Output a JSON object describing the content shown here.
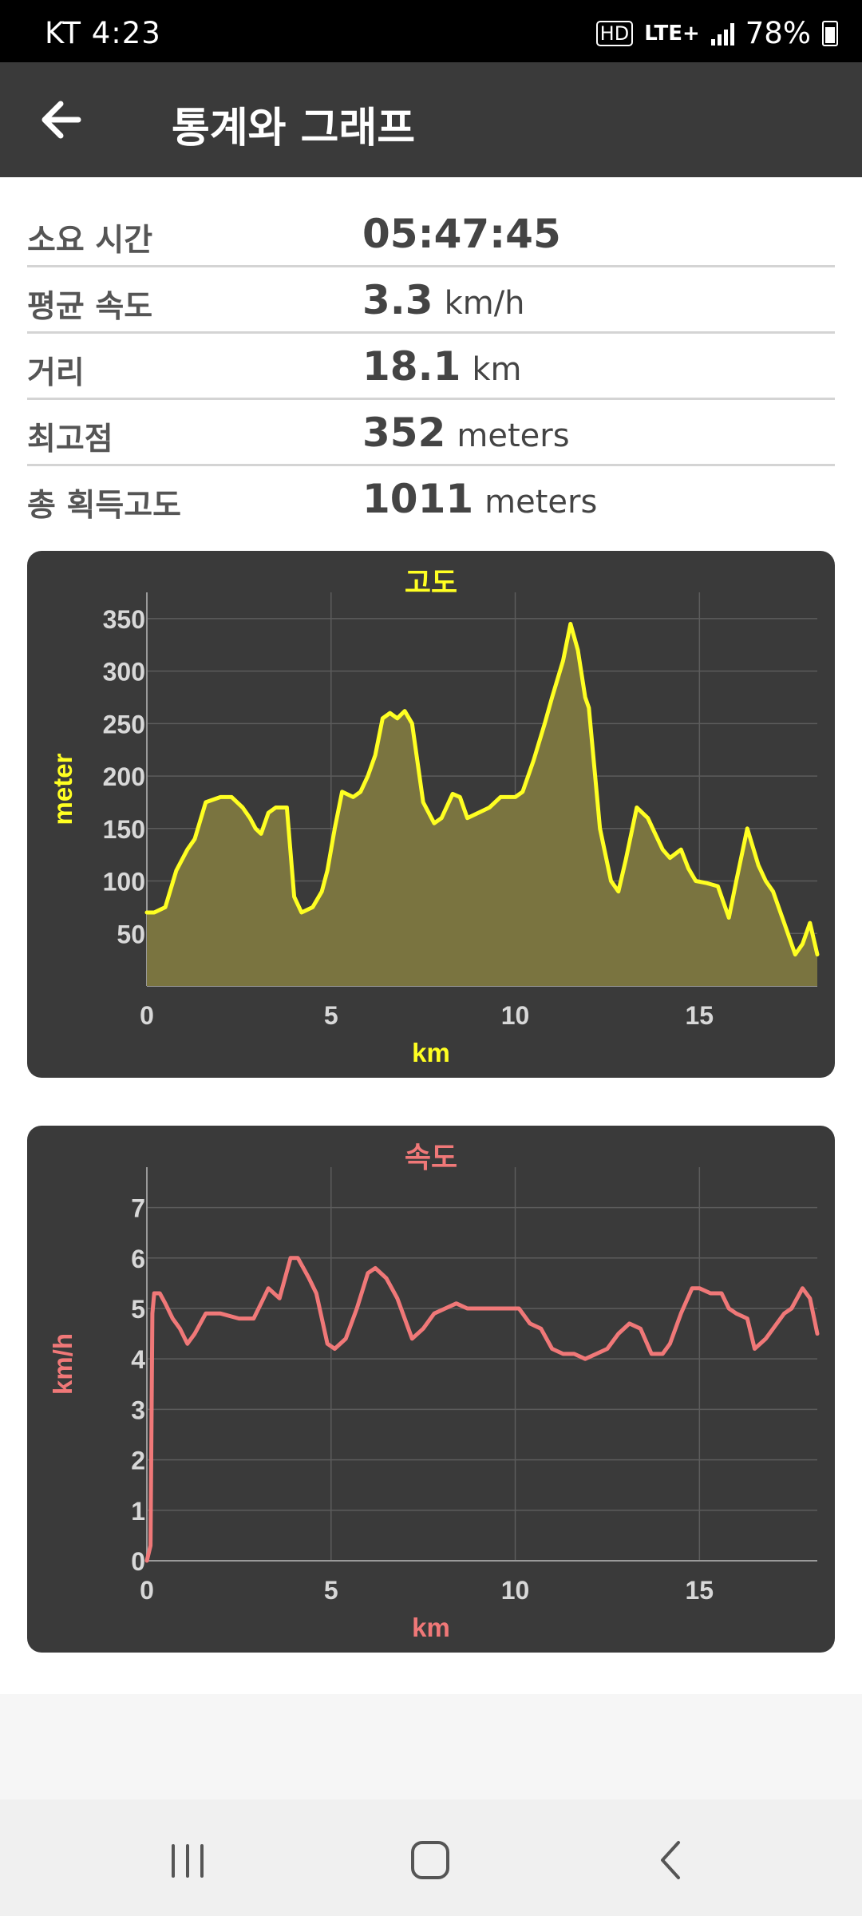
{
  "status": {
    "carrier_time": "KT 4:23",
    "hd": "HD",
    "network": "LTE+",
    "battery": "78%"
  },
  "appbar": {
    "back_icon": "arrow-left-icon",
    "title": "통계와 그래프"
  },
  "stats": [
    {
      "label": "소요 시간",
      "value": "05:47:45",
      "unit": ""
    },
    {
      "label": "평균 속도",
      "value": "3.3",
      "unit": "km/h"
    },
    {
      "label": "거리",
      "value": "18.1",
      "unit": "km"
    },
    {
      "label": "최고점",
      "value": "352",
      "unit": "meters"
    },
    {
      "label": "총 획득고도",
      "value": "1011",
      "unit": "meters"
    }
  ],
  "chart_data": [
    {
      "type": "area",
      "title": "고도",
      "xlabel": "km",
      "ylabel": "meter",
      "color": "#ffff22",
      "fill": "#7a7440",
      "xlim": [
        0,
        18.2
      ],
      "ylim": [
        0,
        375
      ],
      "xticks": [
        0,
        5,
        10,
        15
      ],
      "yticks": [
        50,
        100,
        150,
        200,
        250,
        300,
        350
      ],
      "grid": true,
      "x": [
        0,
        0.2,
        0.5,
        0.8,
        1.1,
        1.3,
        1.6,
        2.0,
        2.3,
        2.6,
        2.8,
        2.95,
        3.1,
        3.3,
        3.5,
        3.8,
        4.0,
        4.2,
        4.5,
        4.75,
        4.9,
        5.1,
        5.3,
        5.6,
        5.8,
        6.0,
        6.2,
        6.4,
        6.6,
        6.8,
        7.0,
        7.2,
        7.5,
        7.8,
        8.0,
        8.3,
        8.5,
        8.7,
        9.0,
        9.3,
        9.6,
        10.0,
        10.2,
        10.5,
        10.8,
        11.0,
        11.3,
        11.5,
        11.7,
        11.9,
        12.0,
        12.3,
        12.6,
        12.8,
        13.0,
        13.3,
        13.6,
        13.8,
        14.0,
        14.2,
        14.5,
        14.7,
        14.9,
        15.2,
        15.5,
        15.8,
        16.0,
        16.3,
        16.6,
        16.8,
        17.0,
        17.3,
        17.6,
        17.8,
        18.0,
        18.2
      ],
      "y": [
        70,
        70,
        75,
        110,
        130,
        140,
        175,
        180,
        180,
        170,
        160,
        150,
        145,
        165,
        170,
        170,
        85,
        70,
        75,
        90,
        110,
        150,
        185,
        180,
        185,
        200,
        220,
        255,
        260,
        255,
        262,
        250,
        175,
        155,
        160,
        183,
        180,
        160,
        165,
        170,
        180,
        180,
        185,
        215,
        250,
        275,
        310,
        345,
        320,
        275,
        265,
        150,
        100,
        90,
        120,
        170,
        160,
        145,
        130,
        122,
        130,
        112,
        100,
        98,
        95,
        65,
        100,
        150,
        115,
        100,
        90,
        60,
        30,
        40,
        60,
        30
      ]
    },
    {
      "type": "line",
      "title": "속도",
      "xlabel": "km",
      "ylabel": "km/h",
      "color": "#f07878",
      "xlim": [
        0,
        18.2
      ],
      "ylim": [
        0,
        7.8
      ],
      "xticks": [
        0,
        5,
        10,
        15
      ],
      "yticks": [
        0,
        1,
        2,
        3,
        4,
        5,
        6,
        7
      ],
      "grid": true,
      "x": [
        0,
        0.1,
        0.15,
        0.2,
        0.35,
        0.5,
        0.7,
        0.9,
        1.1,
        1.3,
        1.6,
        2.0,
        2.5,
        2.9,
        3.1,
        3.3,
        3.6,
        3.9,
        4.1,
        4.4,
        4.6,
        4.9,
        5.1,
        5.4,
        5.7,
        6.0,
        6.2,
        6.5,
        6.8,
        7.2,
        7.5,
        7.8,
        8.1,
        8.4,
        8.7,
        9.0,
        9.3,
        9.6,
        9.9,
        10.1,
        10.4,
        10.7,
        11.0,
        11.3,
        11.6,
        11.9,
        12.2,
        12.5,
        12.8,
        13.1,
        13.4,
        13.7,
        14.0,
        14.2,
        14.5,
        14.8,
        15.0,
        15.3,
        15.6,
        15.8,
        16.0,
        16.3,
        16.5,
        16.8,
        17.0,
        17.3,
        17.5,
        17.8,
        18.0,
        18.2
      ],
      "y": [
        0,
        0.3,
        4.9,
        5.3,
        5.3,
        5.1,
        4.8,
        4.6,
        4.3,
        4.5,
        4.9,
        4.9,
        4.8,
        4.8,
        5.1,
        5.4,
        5.2,
        6.0,
        6.0,
        5.6,
        5.3,
        4.3,
        4.2,
        4.4,
        5.0,
        5.7,
        5.8,
        5.6,
        5.2,
        4.4,
        4.6,
        4.9,
        5.0,
        5.1,
        5.0,
        5.0,
        5.0,
        5.0,
        5.0,
        5.0,
        4.7,
        4.6,
        4.2,
        4.1,
        4.1,
        4.0,
        4.1,
        4.2,
        4.5,
        4.7,
        4.6,
        4.1,
        4.1,
        4.3,
        4.9,
        5.4,
        5.4,
        5.3,
        5.3,
        5.0,
        4.9,
        4.8,
        4.2,
        4.4,
        4.6,
        4.9,
        5.0,
        5.4,
        5.2,
        4.5
      ]
    }
  ],
  "navbar": {
    "recent_icon": "recent-apps-icon",
    "home_icon": "home-icon",
    "back_icon": "chevron-left-icon"
  }
}
